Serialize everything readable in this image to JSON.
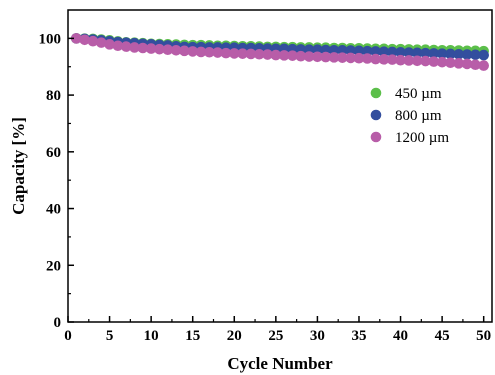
{
  "chart_data": {
    "type": "scatter",
    "title": "",
    "xlabel": "Cycle Number",
    "ylabel": "Capacity [%]",
    "xlim": [
      0,
      51
    ],
    "ylim": [
      0,
      110
    ],
    "xticks": [
      0,
      5,
      10,
      15,
      20,
      25,
      30,
      35,
      40,
      45,
      50
    ],
    "yticks": [
      0,
      20,
      40,
      60,
      80,
      100
    ],
    "legend_position": "right-upper",
    "grid": false,
    "series": [
      {
        "name": "450 µm",
        "color": "#5cbf4a",
        "x": [
          1,
          2,
          3,
          4,
          5,
          6,
          7,
          8,
          9,
          10,
          11,
          12,
          13,
          14,
          15,
          16,
          17,
          18,
          19,
          20,
          21,
          22,
          23,
          24,
          25,
          26,
          27,
          28,
          29,
          30,
          31,
          32,
          33,
          34,
          35,
          36,
          37,
          38,
          39,
          40,
          41,
          42,
          43,
          44,
          45,
          46,
          47,
          48,
          49,
          50
        ],
        "y": [
          100,
          99.9,
          99.8,
          99.6,
          99.3,
          98.9,
          98.6,
          98.5,
          98.3,
          98.1,
          98.0,
          97.9,
          97.8,
          97.7,
          97.6,
          97.6,
          97.5,
          97.4,
          97.4,
          97.3,
          97.2,
          97.2,
          97.1,
          97.0,
          97.0,
          96.9,
          96.9,
          96.8,
          96.8,
          96.7,
          96.7,
          96.6,
          96.6,
          96.5,
          96.5,
          96.4,
          96.3,
          96.3,
          96.2,
          96.2,
          96.1,
          96.0,
          96.0,
          95.9,
          95.8,
          95.8,
          95.7,
          95.6,
          95.6,
          95.5
        ]
      },
      {
        "name": "800 µm",
        "color": "#334e9e",
        "x": [
          1,
          2,
          3,
          4,
          5,
          6,
          7,
          8,
          9,
          10,
          11,
          12,
          13,
          14,
          15,
          16,
          17,
          18,
          19,
          20,
          21,
          22,
          23,
          24,
          25,
          26,
          27,
          28,
          29,
          30,
          31,
          32,
          33,
          34,
          35,
          36,
          37,
          38,
          39,
          40,
          41,
          42,
          43,
          44,
          45,
          46,
          47,
          48,
          49,
          50
        ],
        "y": [
          100,
          99.8,
          99.6,
          99.3,
          99.0,
          98.7,
          98.5,
          98.3,
          98.1,
          97.9,
          97.7,
          97.5,
          97.2,
          97.0,
          96.9,
          96.9,
          96.8,
          96.8,
          96.7,
          96.7,
          96.6,
          96.6,
          96.5,
          96.4,
          96.3,
          96.3,
          96.2,
          96.1,
          96.0,
          96.0,
          95.9,
          95.8,
          95.8,
          95.7,
          95.6,
          95.5,
          95.4,
          95.3,
          95.2,
          95.1,
          95.0,
          94.9,
          94.8,
          94.7,
          94.6,
          94.5,
          94.4,
          94.3,
          94.2,
          94.1
        ]
      },
      {
        "name": "1200 µm",
        "color": "#b85da8",
        "x": [
          1,
          2,
          3,
          4,
          5,
          6,
          7,
          8,
          9,
          10,
          11,
          12,
          13,
          14,
          15,
          16,
          17,
          18,
          19,
          20,
          21,
          22,
          23,
          24,
          25,
          26,
          27,
          28,
          29,
          30,
          31,
          32,
          33,
          34,
          35,
          36,
          37,
          38,
          39,
          40,
          41,
          42,
          43,
          44,
          45,
          46,
          47,
          48,
          49,
          50
        ],
        "y": [
          100,
          99.5,
          99.0,
          98.5,
          97.9,
          97.4,
          97.1,
          96.8,
          96.6,
          96.4,
          96.2,
          96.0,
          95.8,
          95.6,
          95.4,
          95.2,
          95.1,
          95.0,
          94.8,
          94.7,
          94.6,
          94.5,
          94.4,
          94.3,
          94.1,
          94.0,
          93.9,
          93.7,
          93.6,
          93.5,
          93.4,
          93.3,
          93.2,
          93.1,
          93.0,
          92.9,
          92.7,
          92.6,
          92.5,
          92.3,
          92.2,
          92.1,
          92.0,
          91.8,
          91.6,
          91.4,
          91.2,
          91.0,
          90.7,
          90.4
        ]
      }
    ]
  }
}
